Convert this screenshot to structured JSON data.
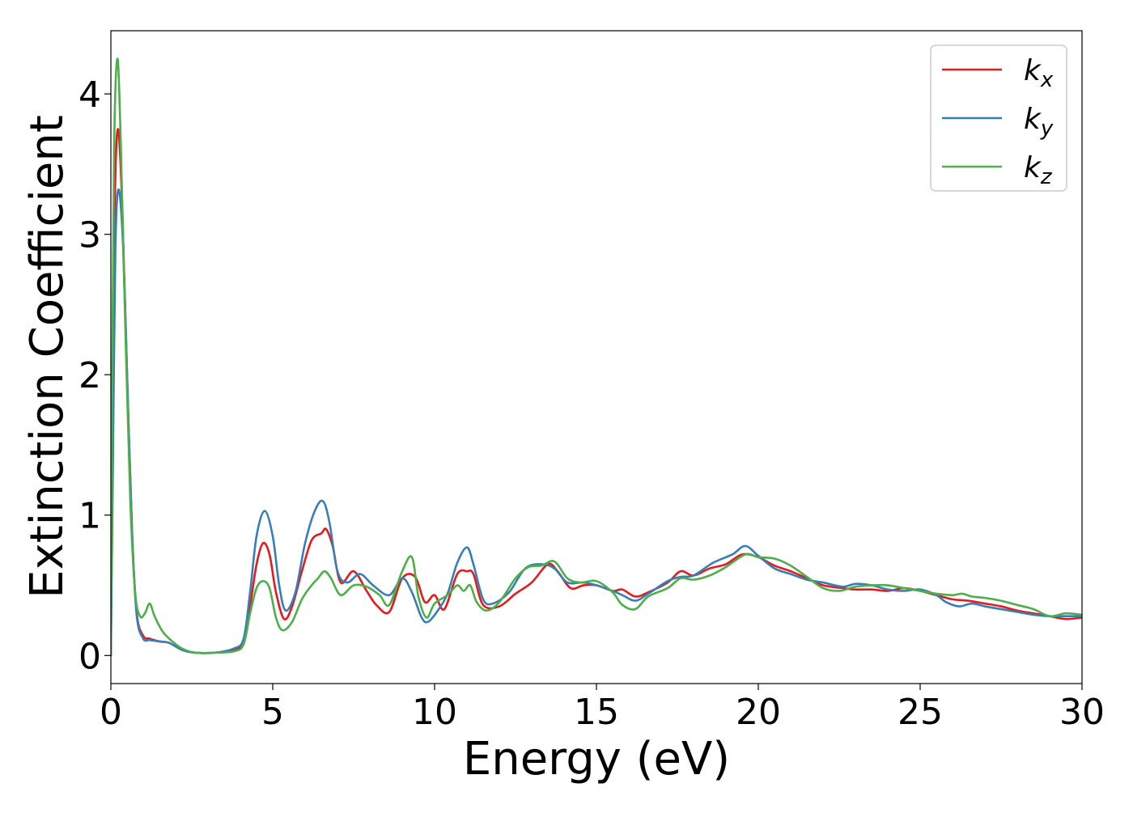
{
  "chart_data": {
    "type": "line",
    "title": "",
    "xlabel": "Energy (eV)",
    "ylabel": "Extinction Coefficient",
    "xlim": [
      0,
      30
    ],
    "ylim": [
      -0.2,
      4.45
    ],
    "xticks": [
      0,
      5,
      10,
      15,
      20,
      25,
      30
    ],
    "yticks": [
      0,
      1,
      2,
      3,
      4
    ],
    "grid": false,
    "legend_position": "top-right",
    "series": [
      {
        "name": "k_x",
        "label_main": "k",
        "label_sub": "x",
        "color": "#e41a1c",
        "points": [
          [
            0,
            0.0
          ],
          [
            0.05,
            1.5
          ],
          [
            0.12,
            3.2
          ],
          [
            0.22,
            3.75
          ],
          [
            0.35,
            3.2
          ],
          [
            0.5,
            2.0
          ],
          [
            0.65,
            0.9
          ],
          [
            0.8,
            0.3
          ],
          [
            1.0,
            0.14
          ],
          [
            1.2,
            0.12
          ],
          [
            1.5,
            0.1
          ],
          [
            1.8,
            0.09
          ],
          [
            2.2,
            0.04
          ],
          [
            2.6,
            0.02
          ],
          [
            3.2,
            0.02
          ],
          [
            3.8,
            0.04
          ],
          [
            4.1,
            0.1
          ],
          [
            4.3,
            0.35
          ],
          [
            4.5,
            0.65
          ],
          [
            4.7,
            0.8
          ],
          [
            4.9,
            0.72
          ],
          [
            5.1,
            0.45
          ],
          [
            5.35,
            0.26
          ],
          [
            5.6,
            0.35
          ],
          [
            5.9,
            0.6
          ],
          [
            6.2,
            0.82
          ],
          [
            6.5,
            0.87
          ],
          [
            6.65,
            0.9
          ],
          [
            6.85,
            0.78
          ],
          [
            7.1,
            0.52
          ],
          [
            7.5,
            0.6
          ],
          [
            7.9,
            0.46
          ],
          [
            8.2,
            0.36
          ],
          [
            8.6,
            0.31
          ],
          [
            9.0,
            0.55
          ],
          [
            9.4,
            0.56
          ],
          [
            9.7,
            0.38
          ],
          [
            10.0,
            0.43
          ],
          [
            10.3,
            0.33
          ],
          [
            10.7,
            0.58
          ],
          [
            11.0,
            0.6
          ],
          [
            11.2,
            0.58
          ],
          [
            11.5,
            0.36
          ],
          [
            12.0,
            0.35
          ],
          [
            12.5,
            0.44
          ],
          [
            13.0,
            0.52
          ],
          [
            13.5,
            0.65
          ],
          [
            13.8,
            0.6
          ],
          [
            14.2,
            0.48
          ],
          [
            14.6,
            0.5
          ],
          [
            15.0,
            0.5
          ],
          [
            15.5,
            0.46
          ],
          [
            15.8,
            0.47
          ],
          [
            16.2,
            0.42
          ],
          [
            16.6,
            0.45
          ],
          [
            17.2,
            0.52
          ],
          [
            17.6,
            0.6
          ],
          [
            18.0,
            0.57
          ],
          [
            18.5,
            0.62
          ],
          [
            19.0,
            0.65
          ],
          [
            19.5,
            0.72
          ],
          [
            20.0,
            0.7
          ],
          [
            20.5,
            0.64
          ],
          [
            21.0,
            0.6
          ],
          [
            21.5,
            0.55
          ],
          [
            22.0,
            0.5
          ],
          [
            22.6,
            0.48
          ],
          [
            23.0,
            0.47
          ],
          [
            23.5,
            0.47
          ],
          [
            24.0,
            0.46
          ],
          [
            24.5,
            0.48
          ],
          [
            25.0,
            0.46
          ],
          [
            25.5,
            0.43
          ],
          [
            26.0,
            0.4
          ],
          [
            26.5,
            0.39
          ],
          [
            27.0,
            0.37
          ],
          [
            27.5,
            0.35
          ],
          [
            28.0,
            0.32
          ],
          [
            28.5,
            0.3
          ],
          [
            29.0,
            0.28
          ],
          [
            29.5,
            0.26
          ],
          [
            30.0,
            0.27
          ]
        ]
      },
      {
        "name": "k_y",
        "label_main": "k",
        "label_sub": "y",
        "color": "#377eb8",
        "points": [
          [
            0,
            0.0
          ],
          [
            0.06,
            1.3
          ],
          [
            0.14,
            2.9
          ],
          [
            0.24,
            3.32
          ],
          [
            0.38,
            2.9
          ],
          [
            0.52,
            1.85
          ],
          [
            0.66,
            0.85
          ],
          [
            0.8,
            0.28
          ],
          [
            1.0,
            0.12
          ],
          [
            1.2,
            0.11
          ],
          [
            1.5,
            0.1
          ],
          [
            1.8,
            0.09
          ],
          [
            2.2,
            0.04
          ],
          [
            2.6,
            0.02
          ],
          [
            3.2,
            0.02
          ],
          [
            3.8,
            0.05
          ],
          [
            4.1,
            0.12
          ],
          [
            4.3,
            0.45
          ],
          [
            4.5,
            0.85
          ],
          [
            4.75,
            1.03
          ],
          [
            5.0,
            0.85
          ],
          [
            5.2,
            0.5
          ],
          [
            5.4,
            0.32
          ],
          [
            5.7,
            0.45
          ],
          [
            6.0,
            0.8
          ],
          [
            6.3,
            1.03
          ],
          [
            6.55,
            1.1
          ],
          [
            6.75,
            0.95
          ],
          [
            7.0,
            0.6
          ],
          [
            7.3,
            0.52
          ],
          [
            7.7,
            0.58
          ],
          [
            8.1,
            0.5
          ],
          [
            8.6,
            0.43
          ],
          [
            9.0,
            0.55
          ],
          [
            9.3,
            0.45
          ],
          [
            9.6,
            0.27
          ],
          [
            9.8,
            0.24
          ],
          [
            10.1,
            0.32
          ],
          [
            10.4,
            0.44
          ],
          [
            10.7,
            0.66
          ],
          [
            11.0,
            0.77
          ],
          [
            11.2,
            0.65
          ],
          [
            11.5,
            0.4
          ],
          [
            11.8,
            0.37
          ],
          [
            12.3,
            0.45
          ],
          [
            12.8,
            0.62
          ],
          [
            13.3,
            0.65
          ],
          [
            13.7,
            0.62
          ],
          [
            14.1,
            0.52
          ],
          [
            14.6,
            0.52
          ],
          [
            15.0,
            0.5
          ],
          [
            15.5,
            0.46
          ],
          [
            15.8,
            0.43
          ],
          [
            16.2,
            0.39
          ],
          [
            16.6,
            0.44
          ],
          [
            17.2,
            0.53
          ],
          [
            17.6,
            0.56
          ],
          [
            18.0,
            0.57
          ],
          [
            18.6,
            0.66
          ],
          [
            19.2,
            0.72
          ],
          [
            19.6,
            0.78
          ],
          [
            20.0,
            0.71
          ],
          [
            20.5,
            0.62
          ],
          [
            21.0,
            0.58
          ],
          [
            21.5,
            0.54
          ],
          [
            22.0,
            0.52
          ],
          [
            22.6,
            0.49
          ],
          [
            23.0,
            0.51
          ],
          [
            23.5,
            0.5
          ],
          [
            24.0,
            0.47
          ],
          [
            24.5,
            0.46
          ],
          [
            25.0,
            0.47
          ],
          [
            25.5,
            0.43
          ],
          [
            25.8,
            0.38
          ],
          [
            26.2,
            0.35
          ],
          [
            26.6,
            0.37
          ],
          [
            27.0,
            0.35
          ],
          [
            27.5,
            0.33
          ],
          [
            28.0,
            0.31
          ],
          [
            28.5,
            0.29
          ],
          [
            29.0,
            0.28
          ],
          [
            29.5,
            0.28
          ],
          [
            30.0,
            0.28
          ]
        ]
      },
      {
        "name": "k_z",
        "label_main": "k",
        "label_sub": "z",
        "color": "#4daf4a",
        "points": [
          [
            0,
            0.0
          ],
          [
            0.04,
            1.8
          ],
          [
            0.1,
            3.6
          ],
          [
            0.2,
            4.25
          ],
          [
            0.3,
            3.7
          ],
          [
            0.45,
            2.3
          ],
          [
            0.6,
            1.1
          ],
          [
            0.75,
            0.45
          ],
          [
            0.9,
            0.28
          ],
          [
            1.05,
            0.3
          ],
          [
            1.2,
            0.37
          ],
          [
            1.35,
            0.28
          ],
          [
            1.6,
            0.17
          ],
          [
            1.9,
            0.1
          ],
          [
            2.2,
            0.05
          ],
          [
            2.6,
            0.02
          ],
          [
            3.2,
            0.02
          ],
          [
            3.8,
            0.03
          ],
          [
            4.1,
            0.08
          ],
          [
            4.3,
            0.3
          ],
          [
            4.5,
            0.48
          ],
          [
            4.7,
            0.53
          ],
          [
            4.9,
            0.48
          ],
          [
            5.1,
            0.27
          ],
          [
            5.3,
            0.18
          ],
          [
            5.6,
            0.24
          ],
          [
            5.9,
            0.4
          ],
          [
            6.2,
            0.5
          ],
          [
            6.4,
            0.55
          ],
          [
            6.6,
            0.6
          ],
          [
            6.8,
            0.55
          ],
          [
            7.1,
            0.43
          ],
          [
            7.5,
            0.5
          ],
          [
            7.9,
            0.49
          ],
          [
            8.3,
            0.43
          ],
          [
            8.6,
            0.36
          ],
          [
            9.0,
            0.6
          ],
          [
            9.3,
            0.7
          ],
          [
            9.5,
            0.42
          ],
          [
            9.75,
            0.27
          ],
          [
            10.0,
            0.37
          ],
          [
            10.4,
            0.43
          ],
          [
            10.7,
            0.5
          ],
          [
            10.9,
            0.46
          ],
          [
            11.1,
            0.5
          ],
          [
            11.3,
            0.38
          ],
          [
            11.6,
            0.32
          ],
          [
            12.0,
            0.38
          ],
          [
            12.5,
            0.55
          ],
          [
            12.9,
            0.63
          ],
          [
            13.3,
            0.64
          ],
          [
            13.7,
            0.67
          ],
          [
            14.1,
            0.55
          ],
          [
            14.5,
            0.52
          ],
          [
            15.0,
            0.53
          ],
          [
            15.5,
            0.45
          ],
          [
            15.8,
            0.36
          ],
          [
            16.2,
            0.33
          ],
          [
            16.6,
            0.42
          ],
          [
            17.2,
            0.48
          ],
          [
            17.6,
            0.55
          ],
          [
            18.0,
            0.54
          ],
          [
            18.5,
            0.57
          ],
          [
            19.0,
            0.63
          ],
          [
            19.6,
            0.72
          ],
          [
            20.0,
            0.7
          ],
          [
            20.5,
            0.69
          ],
          [
            21.0,
            0.64
          ],
          [
            21.5,
            0.56
          ],
          [
            22.0,
            0.48
          ],
          [
            22.5,
            0.46
          ],
          [
            23.0,
            0.49
          ],
          [
            23.5,
            0.5
          ],
          [
            24.0,
            0.5
          ],
          [
            24.5,
            0.48
          ],
          [
            25.0,
            0.46
          ],
          [
            25.5,
            0.44
          ],
          [
            26.0,
            0.43
          ],
          [
            26.3,
            0.44
          ],
          [
            26.6,
            0.42
          ],
          [
            27.0,
            0.41
          ],
          [
            27.5,
            0.39
          ],
          [
            28.0,
            0.36
          ],
          [
            28.5,
            0.33
          ],
          [
            29.0,
            0.28
          ],
          [
            29.5,
            0.3
          ],
          [
            30.0,
            0.29
          ]
        ]
      }
    ]
  }
}
